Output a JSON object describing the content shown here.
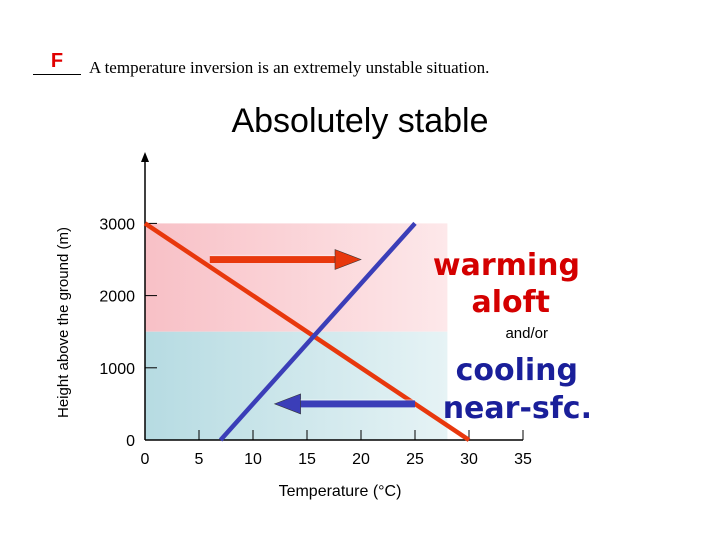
{
  "question": {
    "answer": "F",
    "text": "A temperature inversion is an extremely unstable situation."
  },
  "colors": {
    "warm_zone": "#f9c4c8",
    "cool_zone": "#bfe0e6",
    "red_line": "#e8380d",
    "blue_line": "#3b3eb8",
    "red_text": "#d40000",
    "blue_text": "#1a1f9a"
  },
  "chart_data": {
    "type": "line",
    "title": "Absolutely stable",
    "xlabel": "Temperature (°C)",
    "ylabel": "Height above the ground (m)",
    "xlim": [
      0,
      35
    ],
    "ylim": [
      0,
      3000
    ],
    "x_ticks": [
      "0",
      "5",
      "10",
      "15",
      "20",
      "25",
      "30",
      "35"
    ],
    "y_ticks": [
      "0",
      "1000",
      "2000",
      "3000"
    ],
    "grid": false,
    "series": [
      {
        "color": "red",
        "points": [
          [
            0,
            3000
          ],
          [
            30,
            0
          ]
        ]
      },
      {
        "color": "blue",
        "points": [
          [
            7,
            0
          ],
          [
            25,
            3000
          ]
        ]
      }
    ],
    "zones": [
      {
        "name": "warm",
        "y_from": 1500,
        "y_to": 3000,
        "x_to": 28
      },
      {
        "name": "cool",
        "y_from": 0,
        "y_to": 1500,
        "x_to": 28
      }
    ],
    "arrows": [
      {
        "name": "warming-arrow",
        "direction": "right",
        "y": 2500,
        "x_from": 6,
        "x_to": 20
      },
      {
        "name": "cooling-arrow",
        "direction": "left",
        "y": 500,
        "x_from": 25,
        "x_to": 12
      }
    ],
    "annotations": {
      "warming_1": "warming",
      "warming_2": "aloft",
      "andor": "and/or",
      "cooling_1": "cooling",
      "cooling_2": "near-sfc."
    }
  }
}
